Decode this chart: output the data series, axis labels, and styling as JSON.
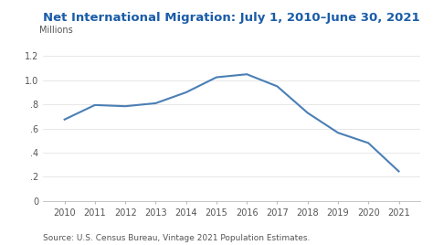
{
  "title": "Net International Migration: July 1, 2010–June 30, 2021",
  "ylabel": "Millions",
  "source": "Source: U.S. Census Bureau, Vintage 2021 Population Estimates.",
  "x": [
    2010,
    2011,
    2012,
    2013,
    2014,
    2015,
    2016,
    2017,
    2018,
    2019,
    2020,
    2021
  ],
  "y": [
    0.675,
    0.795,
    0.785,
    0.81,
    0.9,
    1.025,
    1.05,
    0.95,
    0.73,
    0.565,
    0.48,
    0.245
  ],
  "line_color": "#4a7fb5",
  "title_color": "#1a5ca8",
  "background_color": "#ffffff",
  "ylim": [
    0,
    1.3
  ],
  "yticks": [
    0,
    0.2,
    0.4,
    0.6,
    0.8,
    1.0,
    1.2
  ],
  "ytick_labels": [
    "0",
    ".2",
    ".4",
    ".6",
    ".8",
    "1.0",
    "1.2"
  ],
  "title_fontsize": 9.5,
  "label_fontsize": 7,
  "source_fontsize": 6.5,
  "line_width": 1.5
}
